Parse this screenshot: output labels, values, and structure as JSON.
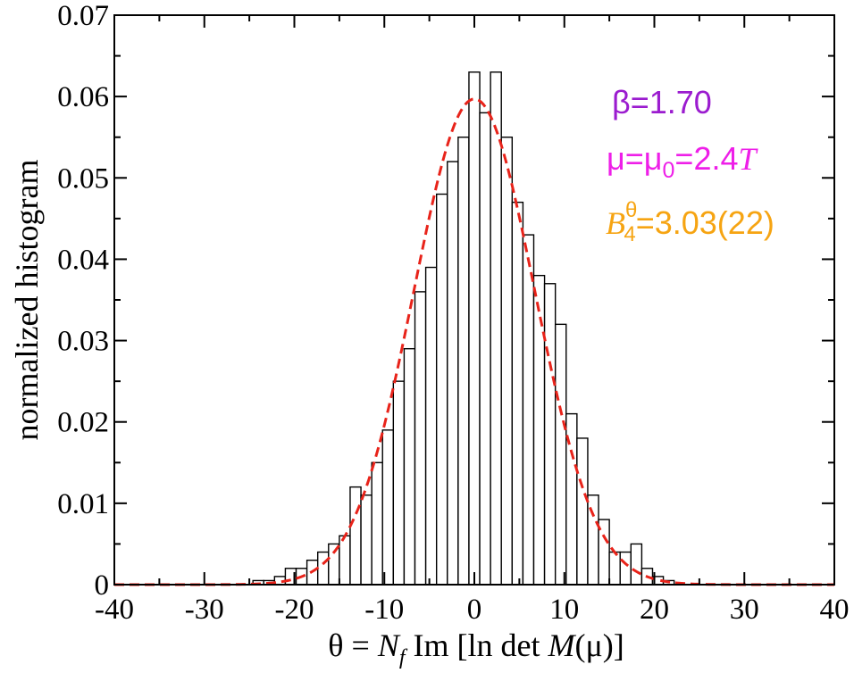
{
  "chart_data": {
    "type": "bar",
    "title": "",
    "xlabel": "θ = N_f Im [ln det M(μ)]",
    "xlabel_parts": {
      "theta": "θ",
      "eq": " = ",
      "N": "N",
      "f": "f",
      "im": " Im [ln det ",
      "M": "M",
      "tail": "(μ)]"
    },
    "ylabel": "normalized histogram",
    "xlim": [
      -40,
      40
    ],
    "ylim": [
      0,
      0.07
    ],
    "x_ticks": [
      -40,
      -30,
      -20,
      -10,
      0,
      10,
      20,
      30,
      40
    ],
    "x_tick_labels": [
      "-40",
      "-30",
      "-20",
      "-10",
      "0",
      "10",
      "20",
      "30",
      "40"
    ],
    "y_ticks": [
      0,
      0.01,
      0.02,
      0.03,
      0.04,
      0.05,
      0.06,
      0.07
    ],
    "y_tick_labels": [
      "0",
      "0.01",
      "0.02",
      "0.03",
      "0.04",
      "0.05",
      "0.06",
      "0.07"
    ],
    "bin_width": 1.2,
    "bin_centers": [
      -24.0,
      -22.8,
      -21.6,
      -20.4,
      -19.2,
      -18.0,
      -16.8,
      -15.6,
      -14.4,
      -13.2,
      -12.0,
      -10.8,
      -9.6,
      -8.4,
      -7.2,
      -6.0,
      -4.8,
      -3.6,
      -2.4,
      -1.2,
      0.0,
      1.2,
      2.4,
      3.6,
      4.8,
      6.0,
      7.2,
      8.4,
      9.6,
      10.8,
      12.0,
      13.2,
      14.4,
      15.6,
      16.8,
      18.0,
      19.2,
      20.4,
      21.6
    ],
    "bin_values": [
      0.0005,
      0.0005,
      0.001,
      0.002,
      0.002,
      0.003,
      0.004,
      0.005,
      0.006,
      0.012,
      0.011,
      0.015,
      0.019,
      0.025,
      0.029,
      0.036,
      0.039,
      0.048,
      0.052,
      0.055,
      0.063,
      0.058,
      0.063,
      0.055,
      0.047,
      0.043,
      0.038,
      0.037,
      0.032,
      0.021,
      0.018,
      0.011,
      0.008,
      0.004,
      0.004,
      0.005,
      0.002,
      0.001,
      0.0005
    ],
    "fit": {
      "name": "Gaussian fit",
      "color": "#e8231a",
      "style": "dashed",
      "amplitude": 0.0597,
      "mean": 0.0,
      "sigma": 6.7
    },
    "bar_fill": "#ffffff",
    "bar_stroke": "#000000",
    "legend_position": "top-right",
    "annotations": [
      {
        "id": "beta",
        "color": "#9b1ccf",
        "parts": {
          "a": "β=1.70"
        }
      },
      {
        "id": "mu",
        "color": "#ee1fe8",
        "parts": {
          "a": "μ=μ",
          "sub": "0",
          "b": "=2.4",
          "T": "T"
        }
      },
      {
        "id": "binder",
        "color": "#f6a412",
        "parts": {
          "B": "B",
          "sup": "θ",
          "sub": "4",
          "b": "=3.03(22)"
        }
      }
    ]
  }
}
